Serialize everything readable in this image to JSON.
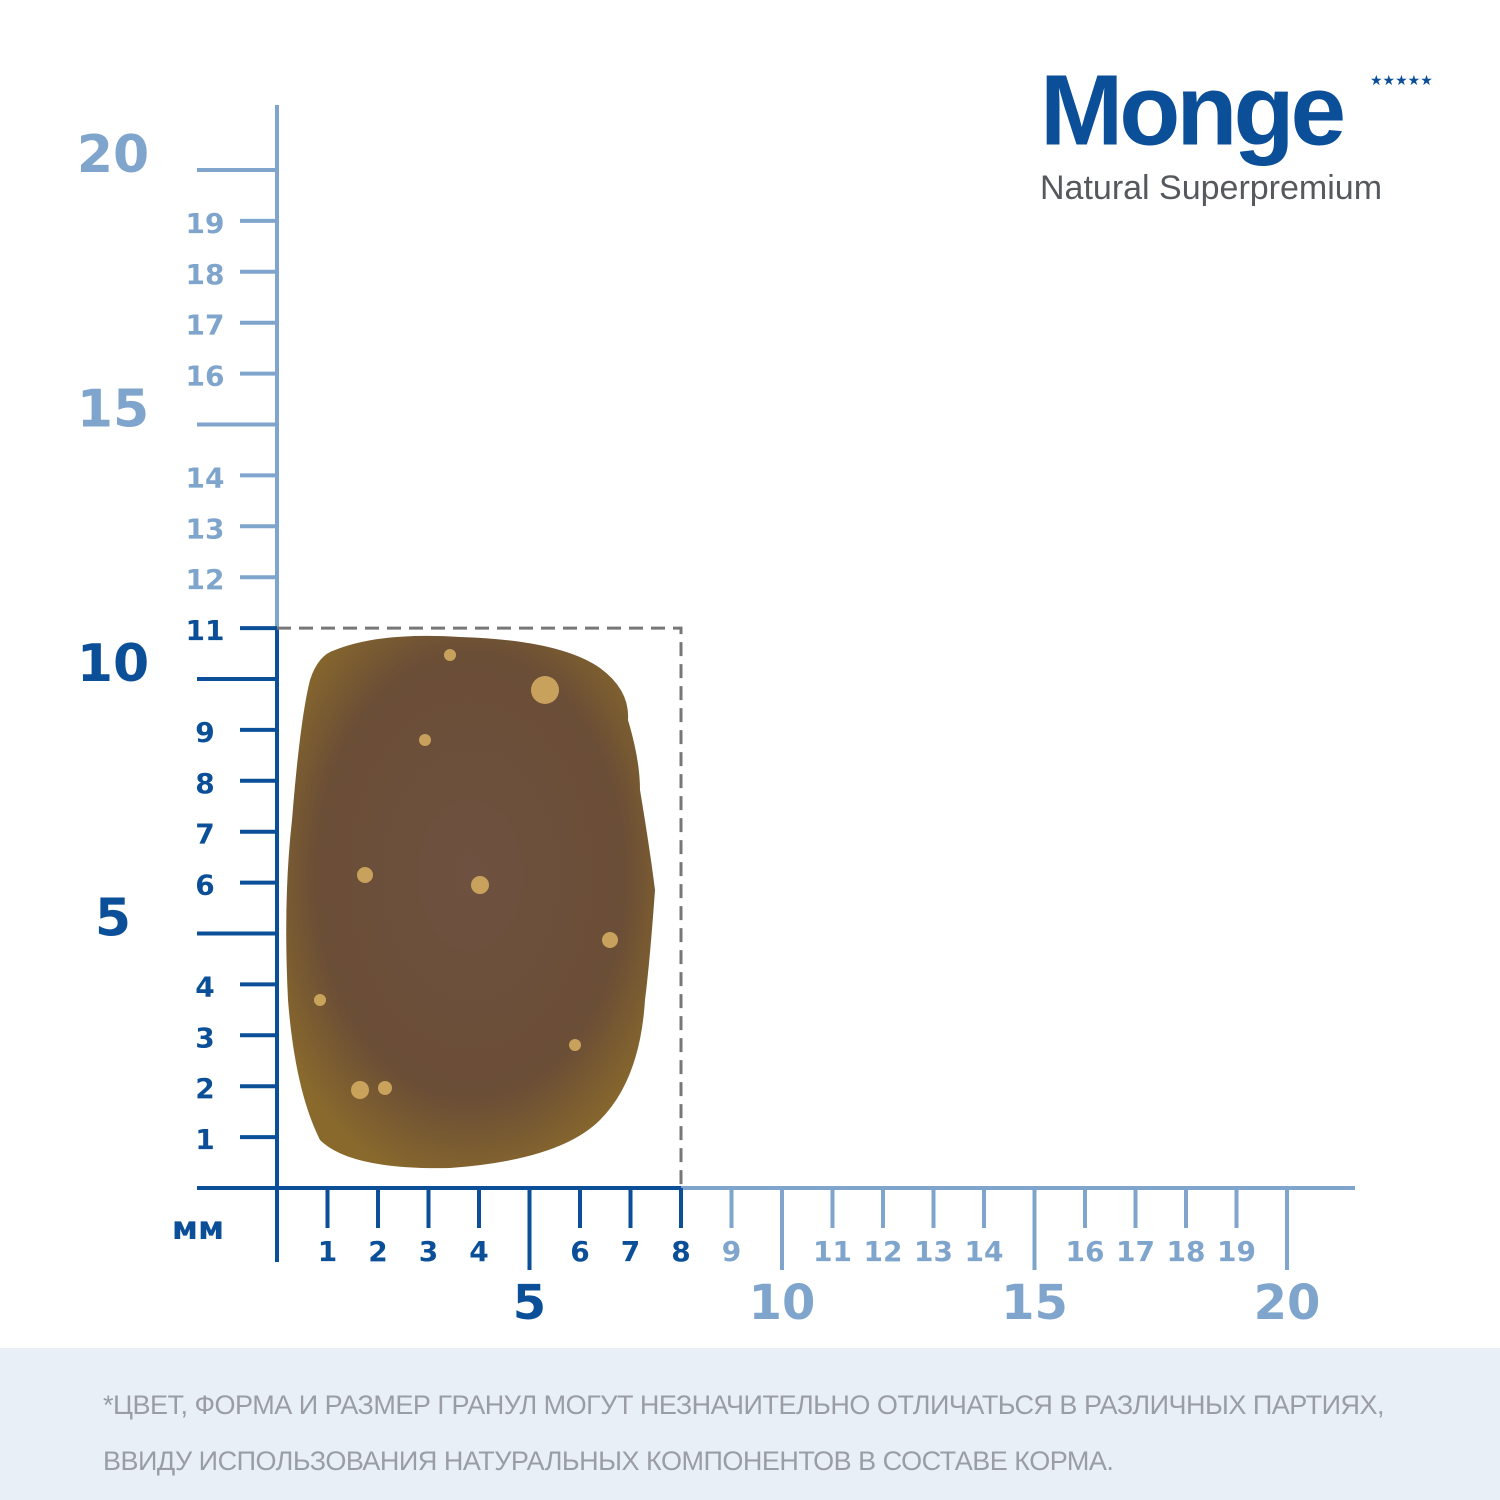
{
  "logo": {
    "brand": "Monge",
    "tagline": "Natural Superpremium"
  },
  "ruler": {
    "unit": "мм",
    "y_labels": [
      1,
      2,
      3,
      4,
      5,
      6,
      7,
      8,
      9,
      10,
      11,
      12,
      13,
      14,
      15,
      16,
      17,
      18,
      19,
      20
    ],
    "x_labels": [
      1,
      2,
      3,
      4,
      5,
      6,
      7,
      8,
      9,
      10,
      11,
      12,
      13,
      14,
      15,
      16,
      17,
      18,
      19,
      20
    ],
    "kibble_size": {
      "width": 8,
      "height": 11
    },
    "dark_color": "#0b4f98",
    "light_color": "#7fa5cd"
  },
  "note": [
    "*Цвет, форма и размер гранул могут незначительно отличаться в различных партиях,",
    "ввиду использования натуральных компонентов в составе корма."
  ]
}
